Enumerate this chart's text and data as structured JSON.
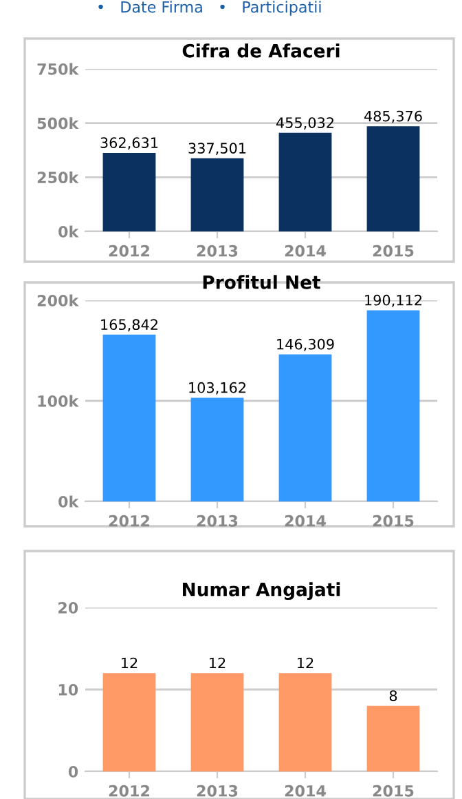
{
  "chart_data": [
    {
      "type": "bar",
      "title": "Cifra de Afaceri",
      "categories": [
        "2012",
        "2013",
        "2014",
        "2015"
      ],
      "values": [
        362631,
        337501,
        455032,
        485376
      ],
      "color": "#0b3160",
      "value_labels": [
        "362,631",
        "337,501",
        "455,032",
        "485,376"
      ],
      "ylim": [
        0,
        750000
      ],
      "yticks": [
        {
          "value": 0,
          "label": "0k"
        },
        {
          "value": 250000,
          "label": "250k"
        },
        {
          "value": 500000,
          "label": "500k"
        },
        {
          "value": 750000,
          "label": "750k"
        }
      ],
      "grid": "y",
      "annotations": [
        "•   Date Firma   •   Participatii"
      ]
    },
    {
      "type": "bar",
      "title": "Profitul Net",
      "categories": [
        "2012",
        "2013",
        "2014",
        "2015"
      ],
      "values": [
        165842,
        103162,
        146309,
        190112
      ],
      "color": "#3399ff",
      "value_labels": [
        "165,842",
        "103,162",
        "146,309",
        "190,112"
      ],
      "ylim": [
        0,
        200000
      ],
      "yticks": [
        {
          "value": 0,
          "label": "0k"
        },
        {
          "value": 100000,
          "label": "100k"
        },
        {
          "value": 200000,
          "label": "200k"
        }
      ],
      "grid": "y"
    },
    {
      "type": "bar",
      "title": "Numar Angajati",
      "categories": [
        "2012",
        "2013",
        "2014",
        "2015"
      ],
      "values": [
        12,
        12,
        12,
        8
      ],
      "color": "#ff9966",
      "data_labels": true,
      "ylim": [
        0,
        20
      ],
      "yticks": [
        0,
        10,
        20
      ],
      "grid": "y"
    }
  ]
}
